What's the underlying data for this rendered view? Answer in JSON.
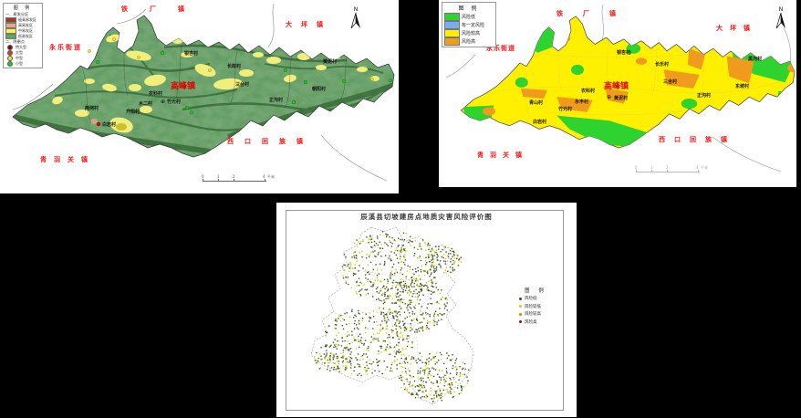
{
  "left": {
    "legend": {
      "title": "图 例",
      "sec1": "一、易发分区",
      "zones": [
        {
          "label": "极高易发区",
          "color": "#9e3b26"
        },
        {
          "label": "高易发区",
          "color": "#eda77f"
        },
        {
          "label": "中易发区",
          "color": "#f7f24e"
        },
        {
          "label": "低易发区",
          "color": "#5aa85a"
        }
      ],
      "sec2": "二、隐患点",
      "points": [
        {
          "label": "特大型",
          "color": "#7a100a"
        },
        {
          "label": "大型",
          "color": "#e03a1c"
        },
        {
          "label": "中型",
          "color": "#f0e02a"
        },
        {
          "label": "小型",
          "color": "#26c826"
        }
      ]
    },
    "towns": [
      "铁厂镇",
      "大坪镇",
      "永乐街道",
      "高峰镇",
      "西口回族镇",
      "青羽关镇"
    ],
    "villages": [
      "银杏村",
      "长郎村",
      "三台村",
      "农科村",
      "水二村",
      "竹元村",
      "升阳村",
      "两河村",
      "白岩村",
      "正沟村",
      "朝阳村",
      "黄泥村"
    ],
    "seat_symbol": "⊕",
    "north": "N",
    "scale": {
      "t0": "0",
      "t1": "1",
      "t2": "2",
      "t3": "4",
      "unit": "千米"
    }
  },
  "right": {
    "legend": {
      "title": "图 例",
      "items": [
        {
          "label": "风险低",
          "color": "#2fd32f"
        },
        {
          "label": "有一定风险",
          "color": "#79aaf2"
        },
        {
          "label": "风险较高",
          "color": "#ffef00"
        },
        {
          "label": "风险高",
          "color": "#f09a1e"
        }
      ]
    },
    "towns": [
      "铁厂镇",
      "大坪镇",
      "永乐街道",
      "高峰镇",
      "西口回族镇",
      "青羽关镇"
    ],
    "villages": [
      "银杏村",
      "长乐村",
      "三合村",
      "正沟村",
      "黑沟村",
      "东坡村",
      "农科村",
      "黄泥村",
      "永丰村",
      "青山村",
      "竹元村",
      "白岩村"
    ],
    "seat_symbol": "⊕",
    "north": "N",
    "scale": {
      "t0": "0",
      "t1": "1",
      "t2": "2",
      "t3": "4",
      "unit": "千米"
    }
  },
  "bottom": {
    "title": "辰溪县切坡建房点地质灾害风险评价图",
    "legend": {
      "title": "图 例",
      "items": [
        {
          "label": "风险低",
          "color": "#39541d"
        },
        {
          "label": "风险较低",
          "color": "#d6ca00"
        },
        {
          "label": "风险较高",
          "color": "#cf8a00"
        },
        {
          "label": "风险高",
          "color": "#8b1414"
        }
      ]
    },
    "dot_colors": {
      "primary": "#3d5a22",
      "secondary": "#cfd000",
      "ratio_secondary": 0.3
    }
  },
  "colors": {
    "canvas_bg": "#000000",
    "left_base": "#74a774",
    "left_ridge": "#1e4d1e",
    "left_patch": "#f2ee7c",
    "right_base": "#ffef00"
  }
}
